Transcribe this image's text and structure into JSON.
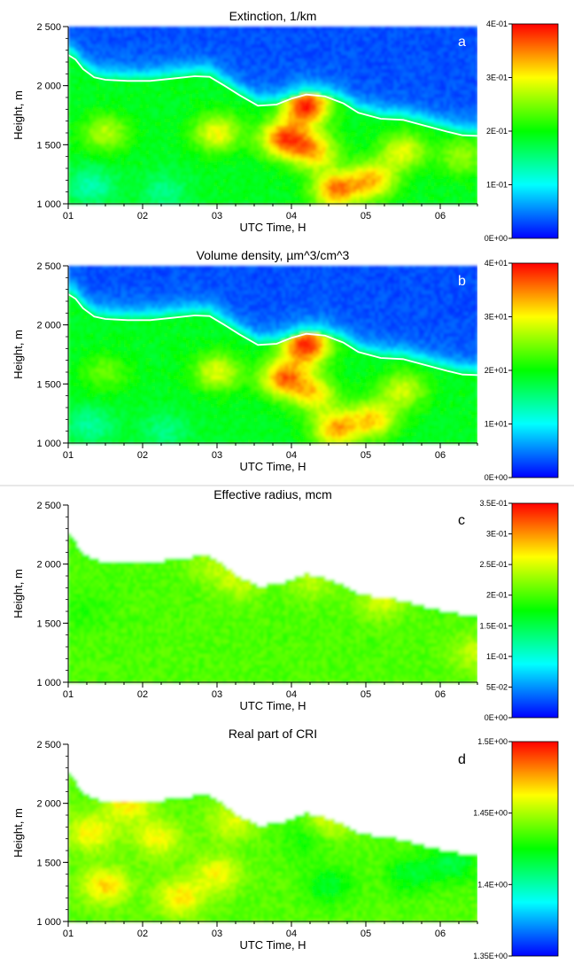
{
  "chart_data": [
    {
      "type": "heatmap",
      "panel": "a",
      "title": "Extinction, 1/km",
      "xlabel": "UTC Time, H",
      "ylabel": "Height, m",
      "x_ticks": [
        "01",
        "02",
        "03",
        "04",
        "05",
        "06"
      ],
      "y_ticks": [
        "1 000",
        "1 500",
        "2 000",
        "2 500"
      ],
      "xlim": [
        1,
        6.5
      ],
      "ylim": [
        1000,
        2500
      ],
      "colorbar": {
        "ticks": [
          "0E+00",
          "1E-01",
          "2E-01",
          "3E-01",
          "4E-01"
        ],
        "min": 0,
        "max": 0.4
      },
      "masked_above_boundary": false,
      "base_level": 0.19,
      "above_level": 0.03,
      "blobs": [
        {
          "x": 4.2,
          "y": 1830,
          "value": 0.39
        },
        {
          "x": 3.9,
          "y": 1550,
          "value": 0.36
        },
        {
          "x": 4.3,
          "y": 1450,
          "value": 0.32
        },
        {
          "x": 4.6,
          "y": 1120,
          "value": 0.35
        },
        {
          "x": 5.1,
          "y": 1200,
          "value": 0.32
        },
        {
          "x": 3.0,
          "y": 1600,
          "value": 0.3
        },
        {
          "x": 5.5,
          "y": 1450,
          "value": 0.29
        },
        {
          "x": 1.5,
          "y": 1600,
          "value": 0.27
        },
        {
          "x": 6.3,
          "y": 1400,
          "value": 0.26
        },
        {
          "x": 1.3,
          "y": 1150,
          "value": 0.13
        },
        {
          "x": 2.3,
          "y": 1100,
          "value": 0.15
        }
      ],
      "boundary": {
        "x": [
          1.0,
          1.1,
          1.2,
          1.35,
          1.5,
          1.8,
          2.1,
          2.4,
          2.7,
          2.9,
          3.1,
          3.3,
          3.55,
          3.8,
          4.0,
          4.2,
          4.45,
          4.7,
          4.9,
          5.2,
          5.5,
          5.8,
          6.1,
          6.3,
          6.5
        ],
        "y": [
          2260,
          2220,
          2140,
          2070,
          2050,
          2040,
          2040,
          2060,
          2080,
          2075,
          2000,
          1920,
          1830,
          1840,
          1890,
          1925,
          1910,
          1850,
          1770,
          1720,
          1710,
          1660,
          1610,
          1580,
          1575
        ]
      }
    },
    {
      "type": "heatmap",
      "panel": "b",
      "title": "Volume density, µm^3/cm^3",
      "xlabel": "UTC Time, H",
      "ylabel": "Height, m",
      "x_ticks": [
        "01",
        "02",
        "03",
        "04",
        "05",
        "06"
      ],
      "y_ticks": [
        "1 000",
        "1 500",
        "2 000",
        "2 500"
      ],
      "xlim": [
        1,
        6.5
      ],
      "ylim": [
        1000,
        2500
      ],
      "colorbar": {
        "ticks": [
          "0E+00",
          "1E+01",
          "2E+01",
          "3E+01",
          "4E+01"
        ],
        "min": 0,
        "max": 40
      },
      "masked_above_boundary": false,
      "base_level": 19,
      "above_level": 3,
      "blobs": [
        {
          "x": 4.2,
          "y": 1830,
          "value": 39
        },
        {
          "x": 3.9,
          "y": 1550,
          "value": 35
        },
        {
          "x": 4.3,
          "y": 1420,
          "value": 30
        },
        {
          "x": 4.6,
          "y": 1120,
          "value": 33
        },
        {
          "x": 5.1,
          "y": 1200,
          "value": 31
        },
        {
          "x": 3.0,
          "y": 1600,
          "value": 29
        },
        {
          "x": 5.5,
          "y": 1450,
          "value": 28
        },
        {
          "x": 1.5,
          "y": 1600,
          "value": 24
        },
        {
          "x": 1.3,
          "y": 1150,
          "value": 14
        },
        {
          "x": 2.3,
          "y": 1100,
          "value": 15
        }
      ],
      "boundary": {
        "x": [
          1.0,
          1.1,
          1.2,
          1.35,
          1.5,
          1.8,
          2.1,
          2.4,
          2.7,
          2.9,
          3.1,
          3.3,
          3.55,
          3.8,
          4.0,
          4.2,
          4.45,
          4.7,
          4.9,
          5.2,
          5.5,
          5.8,
          6.1,
          6.3,
          6.5
        ],
        "y": [
          2260,
          2220,
          2140,
          2070,
          2050,
          2040,
          2040,
          2060,
          2080,
          2075,
          2000,
          1920,
          1830,
          1840,
          1890,
          1925,
          1910,
          1850,
          1770,
          1720,
          1710,
          1660,
          1610,
          1580,
          1575
        ]
      }
    },
    {
      "type": "heatmap",
      "panel": "c",
      "title": "Effective radius, mcm",
      "xlabel": "UTC Time, H",
      "ylabel": "Height, m",
      "x_ticks": [
        "01",
        "02",
        "03",
        "04",
        "05",
        "06"
      ],
      "y_ticks": [
        "1 000",
        "1 500",
        "2 000",
        "2 500"
      ],
      "xlim": [
        1,
        6.5
      ],
      "ylim": [
        1000,
        2500
      ],
      "colorbar": {
        "ticks": [
          "0E+00",
          "5E-02",
          "1E-01",
          "1.5E-01",
          "2E-01",
          "2.5E-01",
          "3E-01",
          "3.5E-01"
        ],
        "min": 0,
        "max": 0.35
      },
      "masked_above_boundary": true,
      "base_level": 0.2,
      "blobs": [
        {
          "x": 5.2,
          "y": 1700,
          "value": 0.25
        },
        {
          "x": 3.3,
          "y": 1850,
          "value": 0.24
        },
        {
          "x": 4.3,
          "y": 1850,
          "value": 0.235
        },
        {
          "x": 2.9,
          "y": 2000,
          "value": 0.23
        },
        {
          "x": 6.45,
          "y": 1250,
          "value": 0.24
        },
        {
          "x": 1.2,
          "y": 1600,
          "value": 0.185
        }
      ],
      "boundary": {
        "x": [
          1.0,
          1.1,
          1.2,
          1.35,
          1.5,
          1.8,
          2.1,
          2.4,
          2.7,
          2.9,
          3.1,
          3.3,
          3.55,
          3.8,
          4.0,
          4.2,
          4.45,
          4.7,
          4.9,
          5.2,
          5.5,
          5.8,
          6.1,
          6.3,
          6.5
        ],
        "y": [
          2260,
          2200,
          2100,
          2040,
          2030,
          2025,
          2025,
          2040,
          2070,
          2070,
          1990,
          1900,
          1820,
          1830,
          1880,
          1920,
          1890,
          1830,
          1760,
          1720,
          1700,
          1640,
          1600,
          1580,
          1570
        ]
      }
    },
    {
      "type": "heatmap",
      "panel": "d",
      "title": "Real part of CRI",
      "xlabel": "UTC Time, H",
      "ylabel": "Height, m",
      "x_ticks": [
        "01",
        "02",
        "03",
        "04",
        "05",
        "06"
      ],
      "y_ticks": [
        "1 000",
        "1 500",
        "2 000",
        "2 500"
      ],
      "xlim": [
        1,
        6.5
      ],
      "ylim": [
        1000,
        2500
      ],
      "colorbar": {
        "ticks": [
          "1.35E+00",
          "1.4E+00",
          "1.45E+00",
          "1.5E+00"
        ],
        "min": 1.35,
        "max": 1.5
      },
      "masked_above_boundary": true,
      "base_level": 1.437,
      "blobs": [
        {
          "x": 1.5,
          "y": 1300,
          "value": 1.468
        },
        {
          "x": 2.5,
          "y": 1200,
          "value": 1.466
        },
        {
          "x": 1.3,
          "y": 1750,
          "value": 1.465
        },
        {
          "x": 2.2,
          "y": 1700,
          "value": 1.462
        },
        {
          "x": 3.0,
          "y": 1400,
          "value": 1.462
        },
        {
          "x": 1.8,
          "y": 2000,
          "value": 1.465
        },
        {
          "x": 3.2,
          "y": 1850,
          "value": 1.458
        },
        {
          "x": 4.5,
          "y": 1300,
          "value": 1.42
        },
        {
          "x": 5.6,
          "y": 1400,
          "value": 1.418
        },
        {
          "x": 4.2,
          "y": 1700,
          "value": 1.425
        },
        {
          "x": 6.2,
          "y": 1500,
          "value": 1.415
        },
        {
          "x": 4.5,
          "y": 1850,
          "value": 1.458
        }
      ],
      "boundary": {
        "x": [
          1.0,
          1.1,
          1.2,
          1.35,
          1.5,
          1.8,
          2.1,
          2.4,
          2.7,
          2.9,
          3.1,
          3.3,
          3.55,
          3.8,
          4.0,
          4.2,
          4.45,
          4.7,
          4.9,
          5.2,
          5.5,
          5.8,
          6.1,
          6.3,
          6.5
        ],
        "y": [
          2260,
          2200,
          2100,
          2040,
          2030,
          2025,
          2025,
          2040,
          2070,
          2070,
          1990,
          1900,
          1820,
          1830,
          1880,
          1920,
          1890,
          1830,
          1760,
          1720,
          1700,
          1640,
          1600,
          1580,
          1570
        ]
      }
    }
  ]
}
